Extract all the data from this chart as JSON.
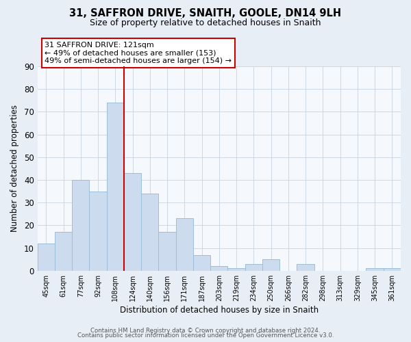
{
  "title": "31, SAFFRON DRIVE, SNAITH, GOOLE, DN14 9LH",
  "subtitle": "Size of property relative to detached houses in Snaith",
  "xlabel": "Distribution of detached houses by size in Snaith",
  "ylabel": "Number of detached properties",
  "categories": [
    "45sqm",
    "61sqm",
    "77sqm",
    "92sqm",
    "108sqm",
    "124sqm",
    "140sqm",
    "156sqm",
    "171sqm",
    "187sqm",
    "203sqm",
    "219sqm",
    "234sqm",
    "250sqm",
    "266sqm",
    "282sqm",
    "298sqm",
    "313sqm",
    "329sqm",
    "345sqm",
    "361sqm"
  ],
  "values": [
    12,
    17,
    40,
    35,
    74,
    43,
    34,
    17,
    23,
    7,
    2,
    1,
    3,
    5,
    0,
    3,
    0,
    0,
    0,
    1,
    1
  ],
  "bar_color": "#ccdcee",
  "bar_edge_color": "#9dbdd8",
  "highlight_bar_index": 4,
  "highlight_line_color": "#cc0000",
  "ylim": [
    0,
    90
  ],
  "yticks": [
    0,
    10,
    20,
    30,
    40,
    50,
    60,
    70,
    80,
    90
  ],
  "annotation_line1": "31 SAFFRON DRIVE: 121sqm",
  "annotation_line2": "← 49% of detached houses are smaller (153)",
  "annotation_line3": "49% of semi-detached houses are larger (154) →",
  "annotation_box_edge": "#cc0000",
  "footer_line1": "Contains HM Land Registry data © Crown copyright and database right 2024.",
  "footer_line2": "Contains public sector information licensed under the Open Government Licence v3.0.",
  "background_color": "#e8eef5",
  "plot_background_color": "#f5f8fc",
  "grid_color": "#c8d4e0"
}
